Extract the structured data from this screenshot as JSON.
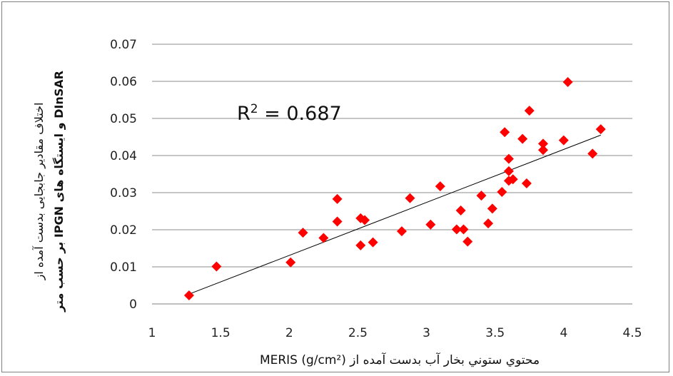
{
  "chart_data": {
    "type": "scatter",
    "title": "",
    "xlabel": "محتوي ستوني بخار آب بدست آمده از MERIS (g/cm²)",
    "ylabel_line1": "اختلاف مقادیر جابجایی بدست آمده از",
    "ylabel_line2": "DInSAR و ایستگاه های IPGN بر حسب متر",
    "xlim": [
      1,
      4.5
    ],
    "ylim": [
      0,
      0.07
    ],
    "xticks": [
      "1",
      "1.5",
      "2",
      "2.5",
      "3",
      "3.5",
      "4",
      "4.5"
    ],
    "yticks": [
      "0",
      "0.01",
      "0.02",
      "0.03",
      "0.04",
      "0.05",
      "0.06",
      "0.07"
    ],
    "grid": "horizontal",
    "marker_color": "#ff0000",
    "trendline_color": "#000000",
    "annotation": "R² = 0.687",
    "trendline": {
      "x": [
        1.28,
        4.27
      ],
      "y": [
        0.0028,
        0.0455
      ]
    },
    "points": [
      {
        "x": 1.27,
        "y": 0.0023
      },
      {
        "x": 1.47,
        "y": 0.0101
      },
      {
        "x": 2.01,
        "y": 0.0112
      },
      {
        "x": 2.1,
        "y": 0.0192
      },
      {
        "x": 2.25,
        "y": 0.0178
      },
      {
        "x": 2.35,
        "y": 0.0222
      },
      {
        "x": 2.35,
        "y": 0.0283
      },
      {
        "x": 2.52,
        "y": 0.0158
      },
      {
        "x": 2.52,
        "y": 0.0231
      },
      {
        "x": 2.55,
        "y": 0.0226
      },
      {
        "x": 2.61,
        "y": 0.0166
      },
      {
        "x": 2.82,
        "y": 0.0196
      },
      {
        "x": 2.88,
        "y": 0.0285
      },
      {
        "x": 3.03,
        "y": 0.0214
      },
      {
        "x": 3.1,
        "y": 0.0317
      },
      {
        "x": 3.22,
        "y": 0.0201
      },
      {
        "x": 3.25,
        "y": 0.0252
      },
      {
        "x": 3.27,
        "y": 0.0201
      },
      {
        "x": 3.3,
        "y": 0.0168
      },
      {
        "x": 3.4,
        "y": 0.0292
      },
      {
        "x": 3.45,
        "y": 0.0217
      },
      {
        "x": 3.48,
        "y": 0.0257
      },
      {
        "x": 3.55,
        "y": 0.0302
      },
      {
        "x": 3.57,
        "y": 0.0463
      },
      {
        "x": 3.6,
        "y": 0.0391
      },
      {
        "x": 3.6,
        "y": 0.0358
      },
      {
        "x": 3.6,
        "y": 0.0332
      },
      {
        "x": 3.63,
        "y": 0.0336
      },
      {
        "x": 3.7,
        "y": 0.0445
      },
      {
        "x": 3.73,
        "y": 0.0325
      },
      {
        "x": 3.75,
        "y": 0.0521
      },
      {
        "x": 3.85,
        "y": 0.0432
      },
      {
        "x": 3.85,
        "y": 0.0415
      },
      {
        "x": 4.0,
        "y": 0.0441
      },
      {
        "x": 4.03,
        "y": 0.0598
      },
      {
        "x": 4.21,
        "y": 0.0405
      },
      {
        "x": 4.27,
        "y": 0.0471
      }
    ]
  }
}
